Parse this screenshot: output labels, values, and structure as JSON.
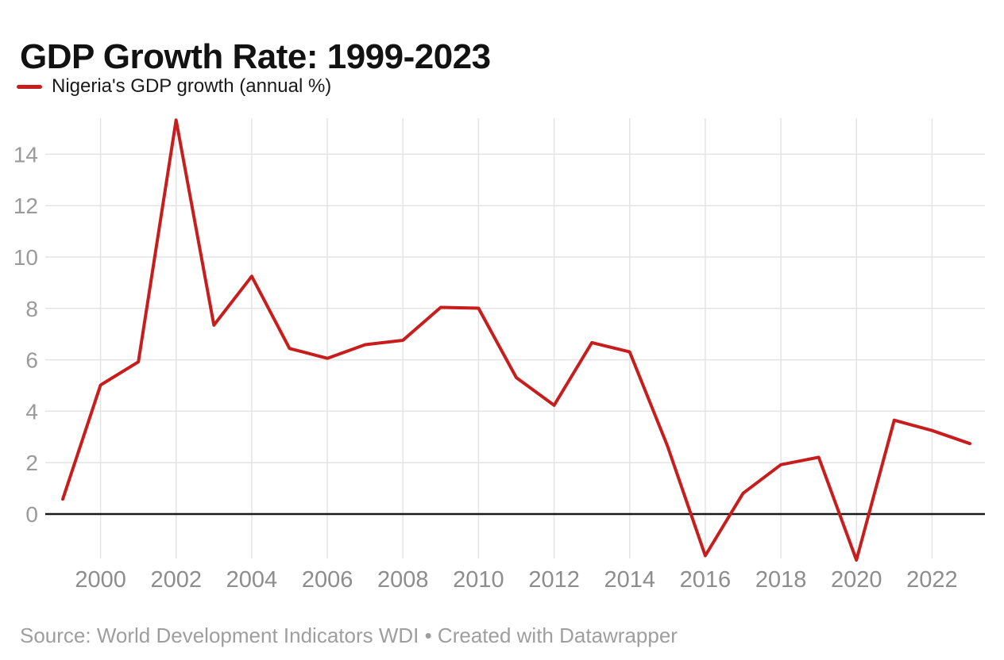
{
  "header": {
    "title": "GDP Growth Rate: 1999-2023",
    "legend": {
      "label": "Nigeria's GDP growth (annual %)",
      "swatch": "red-dash",
      "swatch_color": "#c71e1d"
    }
  },
  "footer": {
    "source": "Source: World Development Indicators WDI • Created with Datawrapper"
  },
  "colors": {
    "background": "#ffffff",
    "accent_line": "#c71e1d",
    "grid_line": "#e4e4e4",
    "zero_baseline": "#191919",
    "y_axis_text": "#9a9a9a",
    "x_axis_text": "#8d8d8d",
    "title_text": "#121212",
    "legend_text": "#1a1a1a",
    "source_text": "#9e9e9e"
  },
  "chart_data": {
    "type": "line",
    "title": "GDP Growth Rate: 1999-2023",
    "xlabel": "",
    "ylabel": "",
    "xlim": [
      1999,
      2023
    ],
    "ylim": [
      -2.1,
      15.5
    ],
    "grid": "light gray horizontal + vertical gridlines at even years, black zero baseline",
    "legend_position": "top-left under title",
    "x_ticks": [
      2000,
      2002,
      2004,
      2006,
      2008,
      2010,
      2012,
      2014,
      2016,
      2018,
      2020,
      2022
    ],
    "y_ticks": [
      0,
      2,
      4,
      6,
      8,
      10,
      12,
      14
    ],
    "series": [
      {
        "name": "Nigeria's GDP growth (annual %)",
        "color": "#c71e1d",
        "x": [
          1999,
          2000,
          2001,
          2002,
          2003,
          2004,
          2005,
          2006,
          2007,
          2008,
          2009,
          2010,
          2011,
          2012,
          2013,
          2014,
          2015,
          2016,
          2017,
          2018,
          2019,
          2020,
          2021,
          2022,
          2023
        ],
        "values": [
          0.58,
          5.02,
          5.92,
          15.33,
          7.35,
          9.25,
          6.44,
          6.06,
          6.59,
          6.76,
          8.04,
          8.01,
          5.31,
          4.23,
          6.67,
          6.31,
          2.65,
          -1.62,
          0.81,
          1.92,
          2.21,
          -1.79,
          3.65,
          3.25,
          2.74
        ]
      }
    ]
  }
}
